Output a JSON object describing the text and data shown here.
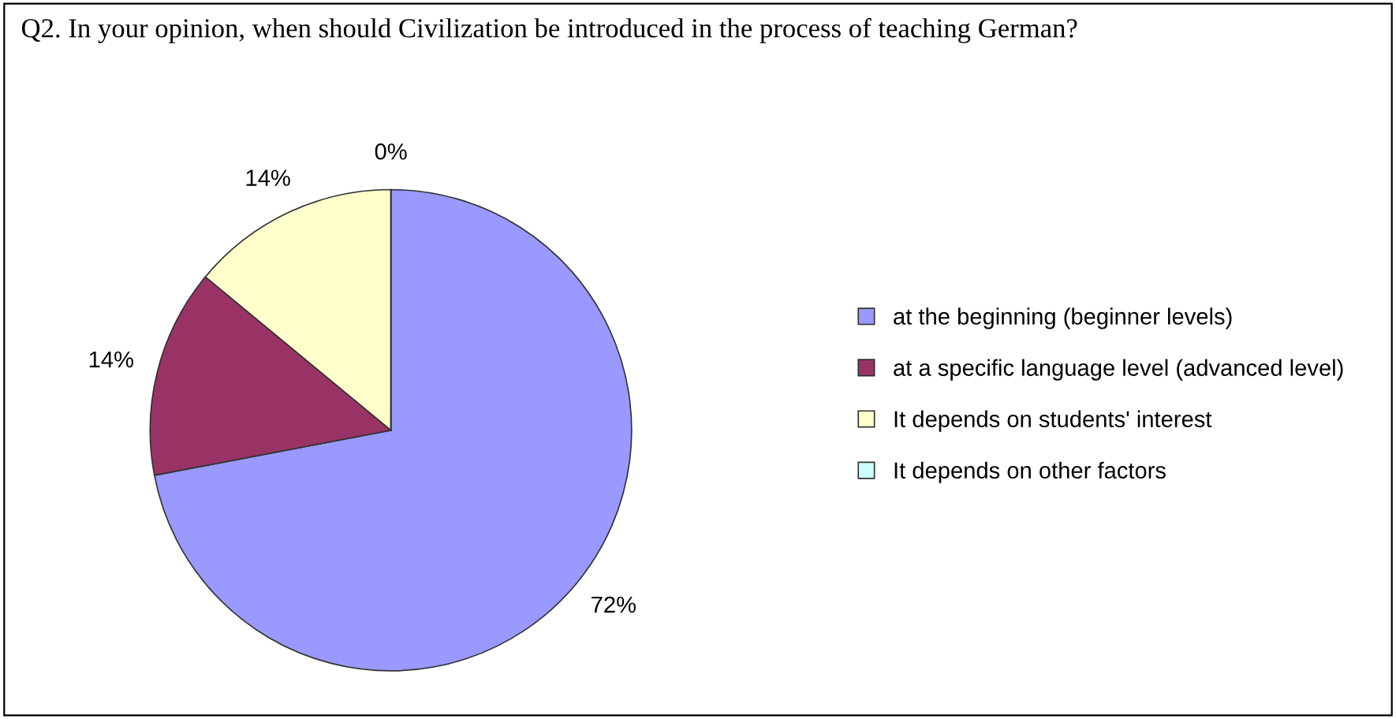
{
  "chart_data": {
    "type": "pie",
    "title": "Q2. In your opinion, when should Civilization be introduced in the process of teaching German?",
    "categories": [
      "at the beginning (beginner levels)",
      "at a specific language level (advanced level)",
      "It depends on students' interest",
      "It depends on other factors"
    ],
    "values": [
      72,
      14,
      14,
      0
    ],
    "colors": [
      "#9999ff",
      "#993366",
      "#ffffcc",
      "#ccffff"
    ],
    "value_labels": [
      "72%",
      "14%",
      "14%",
      "0%"
    ],
    "legend": "right"
  }
}
